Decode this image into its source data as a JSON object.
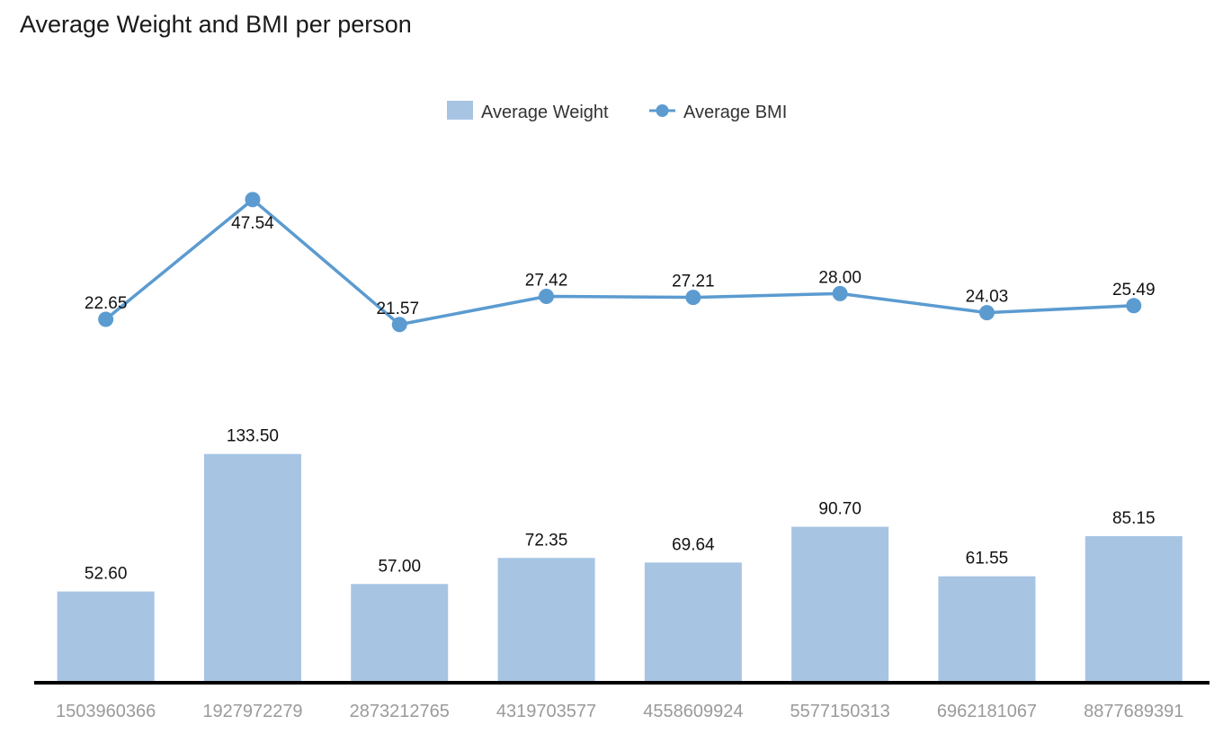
{
  "chart_data": {
    "type": "bar",
    "title": "Average Weight and BMI per person",
    "xlabel": "",
    "ylabel": "",
    "categories": [
      "1503960366",
      "1927972279",
      "2873212765",
      "4319703577",
      "4558609924",
      "5577150313",
      "6962181067",
      "8877689391"
    ],
    "series": [
      {
        "name": "Average Weight",
        "type": "bar",
        "values": [
          52.6,
          133.5,
          57.0,
          72.35,
          69.64,
          90.7,
          61.55,
          85.15
        ],
        "labels": [
          "52.60",
          "133.50",
          "57.00",
          "72.35",
          "69.64",
          "90.70",
          "61.55",
          "85.15"
        ],
        "color": "#a7c4e3"
      },
      {
        "name": "Average BMI",
        "type": "line",
        "values": [
          22.65,
          47.54,
          21.57,
          27.42,
          27.21,
          28.0,
          24.03,
          25.49
        ],
        "labels": [
          "22.65",
          "47.54",
          "21.57",
          "27.42",
          "27.21",
          "28.00",
          "24.03",
          "25.49"
        ],
        "color": "#5b9bd0"
      }
    ],
    "legend_position": "top-center",
    "grid": false,
    "axis_color": "#000000"
  }
}
